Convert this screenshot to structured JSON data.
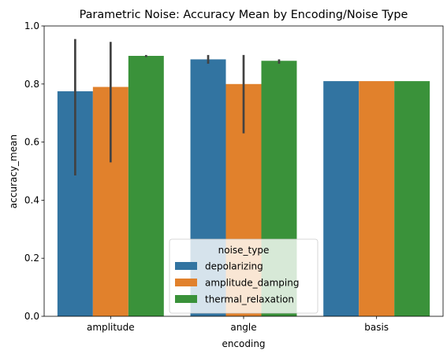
{
  "chart_data": {
    "type": "bar",
    "title": "Parametric Noise: Accuracy Mean by Encoding/Noise Type",
    "xlabel": "encoding",
    "ylabel": "accuracy_mean",
    "ylim": [
      0,
      1
    ],
    "yticks": [
      0.0,
      0.2,
      0.4,
      0.6,
      0.8,
      1.0
    ],
    "ytick_labels": [
      "0.0",
      "0.2",
      "0.4",
      "0.6",
      "0.8",
      "1.0"
    ],
    "grid": false,
    "categories": [
      "amplitude",
      "angle",
      "basis"
    ],
    "legend": {
      "title": "noise_type",
      "placement": "lower-center"
    },
    "series": [
      {
        "name": "depolarizing",
        "color": "#3274a1",
        "values": [
          0.775,
          0.885,
          0.81
        ],
        "error": [
          [
            0.485,
            0.955
          ],
          [
            0.87,
            0.9
          ],
          null
        ]
      },
      {
        "name": "amplitude_damping",
        "color": "#e1812c",
        "values": [
          0.79,
          0.8,
          0.81
        ],
        "error": [
          [
            0.53,
            0.945
          ],
          [
            0.63,
            0.9
          ],
          null
        ]
      },
      {
        "name": "thermal_relaxation",
        "color": "#3a923a",
        "values": [
          0.897,
          0.88,
          0.81
        ],
        "error": [
          [
            0.893,
            0.9
          ],
          [
            0.87,
            0.885
          ],
          null
        ]
      }
    ]
  }
}
